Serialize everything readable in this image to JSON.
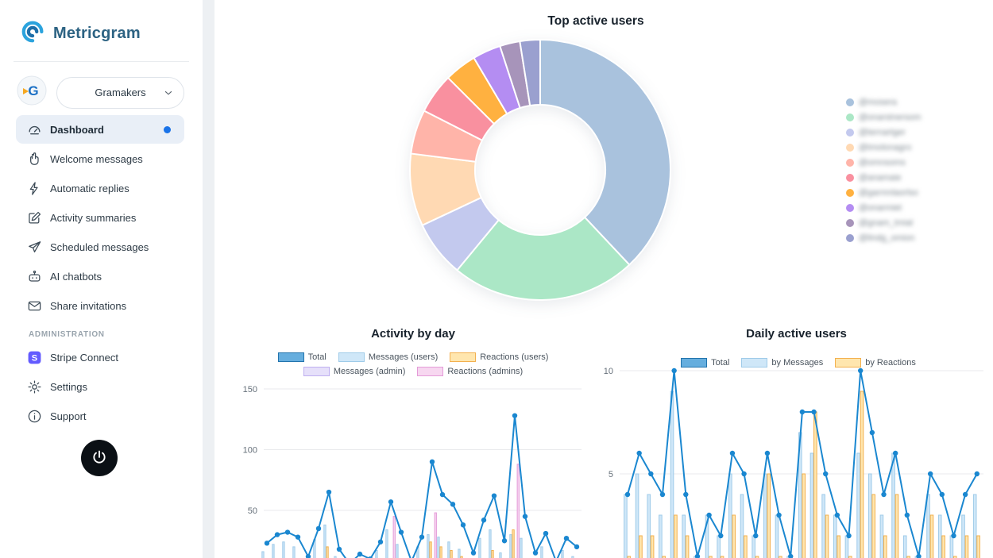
{
  "app": {
    "name": "Metricgram"
  },
  "sidebar": {
    "workspace": {
      "name": "Gramakers"
    },
    "menu": [
      {
        "label": "Dashboard",
        "active": true
      },
      {
        "label": "Welcome messages"
      },
      {
        "label": "Automatic replies"
      },
      {
        "label": "Activity summaries"
      },
      {
        "label": "Scheduled messages"
      },
      {
        "label": "AI chatbots"
      },
      {
        "label": "Share invitations"
      }
    ],
    "section_label": "ADMINISTRATION",
    "admin_menu": [
      {
        "label": "Stripe Connect"
      },
      {
        "label": "Settings"
      },
      {
        "label": "Support"
      }
    ],
    "accent_color": "#1a73e8",
    "stripe_brand_color": "#635bff"
  },
  "chart_data": [
    {
      "type": "pie",
      "title": "Top active users",
      "legend_position": "right",
      "labels": [
        "@mosera",
        "@onarstnersom",
        "@ternartger",
        "@tmolonagro",
        "@omnsoms",
        "@anamaie",
        "@garmnlaorlso",
        "@onarmiet",
        "@gnam_tmial",
        "@lindg_omion"
      ],
      "labels_redacted": true,
      "values": [
        38,
        23,
        7,
        9,
        5.5,
        5,
        4,
        3.5,
        2.5,
        2.5
      ],
      "colors": [
        "#a9c2dd",
        "#abe7c6",
        "#c3c9ee",
        "#ffd9b3",
        "#ffb4a9",
        "#f9909f",
        "#ffb140",
        "#b48df2",
        "#a794ba",
        "#9aa0cf"
      ]
    },
    {
      "type": "bar",
      "title": "Activity by day",
      "ylim": [
        0,
        160
      ],
      "yticks": [
        50,
        100,
        150
      ],
      "grid": true,
      "legend_position": "top",
      "series": [
        {
          "name": "Total",
          "type": "line",
          "color": "#1a87d0",
          "swatch_fill": "#66aede",
          "swatch_stroke": "#2274ad",
          "values": [
            23,
            30,
            32,
            28,
            12,
            35,
            65,
            18,
            6,
            14,
            10,
            24,
            57,
            32,
            8,
            28,
            90,
            63,
            55,
            38,
            15,
            42,
            62,
            25,
            128,
            45,
            15,
            31,
            8,
            27,
            20
          ]
        },
        {
          "name": "Messages (users)",
          "type": "bar",
          "fill": "#cfe7f8",
          "stroke": "#9fcbe9",
          "values": [
            16,
            22,
            24,
            20,
            9,
            26,
            38,
            12,
            4,
            10,
            7,
            17,
            34,
            22,
            5,
            20,
            30,
            28,
            24,
            18,
            10,
            27,
            34,
            15,
            30,
            27,
            10,
            20,
            5,
            17,
            12
          ]
        },
        {
          "name": "Reactions (users)",
          "type": "bar",
          "fill": "#ffe6ae",
          "stroke": "#f3b04e",
          "values": [
            4,
            5,
            5,
            5,
            2,
            6,
            20,
            4,
            1,
            3,
            2,
            4,
            8,
            6,
            2,
            5,
            24,
            20,
            17,
            12,
            3,
            10,
            17,
            6,
            34,
            10,
            3,
            8,
            2,
            6,
            5
          ]
        },
        {
          "name": "Messages (admin)",
          "type": "bar",
          "fill": "#e6e0fa",
          "stroke": "#beaff0",
          "values": [
            2,
            2,
            2,
            2,
            1,
            2,
            4,
            1,
            0,
            1,
            1,
            2,
            4,
            3,
            1,
            2,
            7,
            6,
            5,
            4,
            1,
            3,
            6,
            2,
            7,
            4,
            1,
            2,
            1,
            2,
            2
          ]
        },
        {
          "name": "Reactions (admins)",
          "type": "bar",
          "fill": "#f7d7f0",
          "stroke": "#e49bd8",
          "values": [
            1,
            1,
            1,
            1,
            0,
            1,
            3,
            1,
            0,
            0,
            0,
            1,
            45,
            2,
            0,
            1,
            48,
            9,
            9,
            4,
            1,
            2,
            5,
            2,
            88,
            4,
            1,
            1,
            0,
            2,
            1
          ]
        }
      ]
    },
    {
      "type": "bar",
      "title": "Daily active users",
      "ylim": [
        0,
        10
      ],
      "yticks": [
        5,
        10
      ],
      "grid": true,
      "legend_position": "top",
      "series": [
        {
          "name": "Total",
          "type": "line",
          "color": "#1a87d0",
          "swatch_fill": "#66aede",
          "swatch_stroke": "#2274ad",
          "values": [
            4,
            6,
            5,
            4,
            10,
            4,
            1,
            3,
            2,
            6,
            5,
            2,
            6,
            3,
            1,
            8,
            8,
            5,
            3,
            2,
            10,
            7,
            4,
            6,
            3,
            1,
            5,
            4,
            2,
            4,
            5
          ]
        },
        {
          "name": "by Messages",
          "type": "bar",
          "fill": "#cfe7f8",
          "stroke": "#9fcbe9",
          "values": [
            4,
            5,
            4,
            3,
            9,
            3,
            1,
            3,
            2,
            5,
            4,
            2,
            5,
            3,
            1,
            7,
            6,
            4,
            3,
            2,
            6,
            5,
            3,
            6,
            2,
            1,
            4,
            3,
            2,
            3,
            4
          ]
        },
        {
          "name": "by Reactions",
          "type": "bar",
          "fill": "#ffe6ae",
          "stroke": "#f3b04e",
          "values": [
            1,
            2,
            2,
            1,
            3,
            2,
            0,
            1,
            1,
            3,
            2,
            1,
            5,
            1,
            0,
            5,
            8,
            3,
            2,
            1,
            9,
            4,
            2,
            4,
            1,
            0,
            3,
            2,
            1,
            2,
            2
          ]
        }
      ]
    }
  ]
}
